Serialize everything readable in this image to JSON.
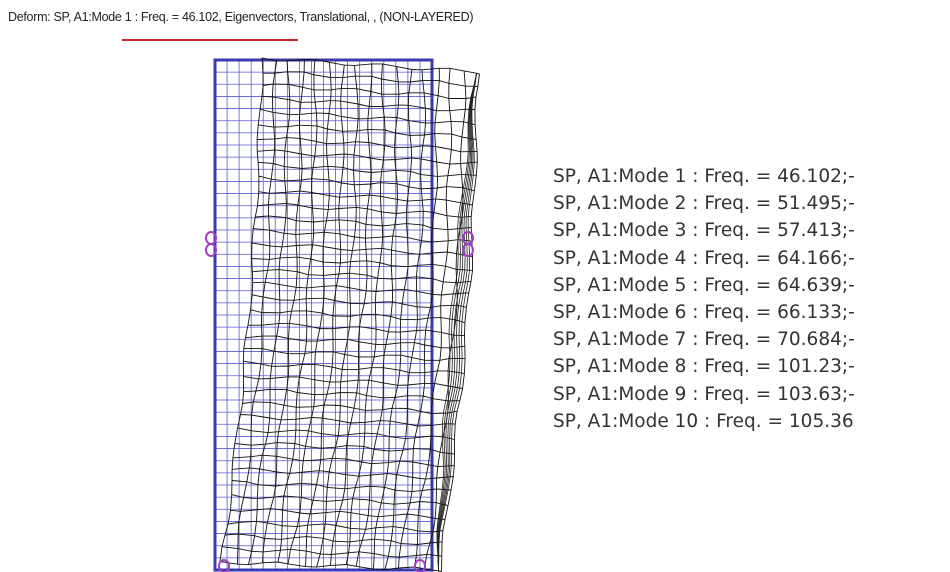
{
  "header": {
    "title": "Deform: SP, A1:Mode 1 : Freq. = 46.102, Eigenvectors, Translational, , (NON-LAYERED)"
  },
  "modes": [
    "SP, A1:Mode 1 : Freq. = 46.102;-",
    "SP, A1:Mode 2 : Freq. = 51.495;-",
    "SP, A1:Mode 3 : Freq. = 57.413;-",
    "SP, A1:Mode 4 : Freq. = 64.166;-",
    "SP, A1:Mode 5 : Freq. = 64.639;-",
    "SP, A1:Mode 6 : Freq. = 66.133;-",
    "SP, A1:Mode 7 : Freq. = 70.684;-",
    "SP, A1:Mode 8 : Freq. = 101.23;-",
    "SP, A1:Mode 9 : Freq. = 103.63;-",
    "SP, A1:Mode 10 : Freq. = 105.36"
  ]
}
